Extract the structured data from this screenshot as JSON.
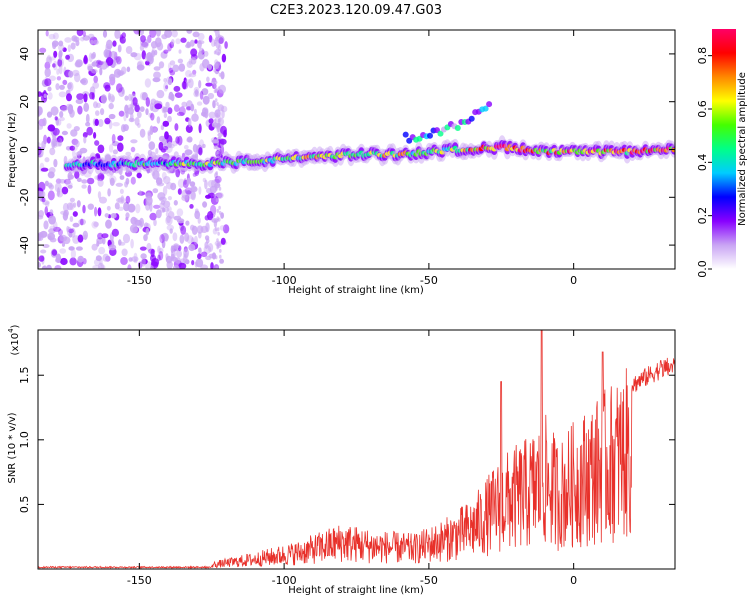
{
  "title": "C2E3.2023.120.09.47.G03",
  "chart_data": [
    {
      "type": "heatmap",
      "xlabel": "Height of straight line (km)",
      "ylabel": "Frequency (Hz)",
      "xlim": [
        -185,
        35
      ],
      "ylim": [
        -50,
        50
      ],
      "x_ticks": [
        -150,
        -100,
        -50,
        0
      ],
      "y_ticks": [
        -40,
        -20,
        0,
        20,
        40
      ],
      "colorbar": {
        "label": "Normalized spectral amplitude",
        "range": [
          0,
          0.9
        ],
        "ticks": [
          "0.0",
          "0.2",
          "0.4",
          "0.6",
          "0.8"
        ],
        "colors": [
          "#ffffff",
          "#c9a4f4",
          "#8800ff",
          "#0000ff",
          "#00ccff",
          "#00ff88",
          "#44ff00",
          "#ffff00",
          "#ff8800",
          "#ff0000",
          "#ff0066"
        ]
      },
      "ridge": [
        {
          "x": -170,
          "f": -6,
          "a": 0.45
        },
        {
          "x": -150,
          "f": -6,
          "a": 0.45
        },
        {
          "x": -130,
          "f": -6,
          "a": 0.6
        },
        {
          "x": -110,
          "f": -5,
          "a": 0.5
        },
        {
          "x": -90,
          "f": -3,
          "a": 0.7
        },
        {
          "x": -75,
          "f": -2,
          "a": 0.55
        },
        {
          "x": -60,
          "f": -2,
          "a": 0.7
        },
        {
          "x": -50,
          "f": -1,
          "a": 0.6
        },
        {
          "x": -40,
          "f": 0,
          "a": 0.65
        },
        {
          "x": -25,
          "f": 1,
          "a": 0.9
        },
        {
          "x": -10,
          "f": -1,
          "a": 0.8
        },
        {
          "x": 0,
          "f": -1,
          "a": 0.85
        },
        {
          "x": 15,
          "f": -1,
          "a": 0.8
        },
        {
          "x": 35,
          "f": 0,
          "a": 0.8
        }
      ],
      "secondary_ridge": [
        {
          "x": -55,
          "f": 5
        },
        {
          "x": -40,
          "f": 10
        },
        {
          "x": -30,
          "f": 18
        }
      ]
    },
    {
      "type": "line",
      "xlabel": "Height of straight line (km)",
      "ylabel": "SNR (10 * v/v)",
      "y_multiplier": "(x10",
      "y_multiplier_exp": "4",
      "y_multiplier_close": ")",
      "xlim": [
        -185,
        35
      ],
      "ylim": [
        0,
        18500
      ],
      "x_ticks": [
        -150,
        -100,
        -50,
        0
      ],
      "y_ticks": [
        "0.5",
        "1.0",
        "1.5"
      ],
      "y_tick_values": [
        5000,
        10000,
        15000
      ],
      "color": "#e8302a",
      "envelope": [
        {
          "x": -185,
          "y": 100
        },
        {
          "x": -140,
          "y": 200
        },
        {
          "x": -125,
          "y": 500
        },
        {
          "x": -110,
          "y": 1200
        },
        {
          "x": -95,
          "y": 2000
        },
        {
          "x": -80,
          "y": 3300
        },
        {
          "x": -70,
          "y": 2800
        },
        {
          "x": -55,
          "y": 2500
        },
        {
          "x": -45,
          "y": 3500
        },
        {
          "x": -35,
          "y": 5000
        },
        {
          "x": -25,
          "y": 8000
        },
        {
          "x": -15,
          "y": 9500
        },
        {
          "x": -10,
          "y": 11000
        },
        {
          "x": -5,
          "y": 9000
        },
        {
          "x": 0,
          "y": 10500
        },
        {
          "x": 10,
          "y": 12500
        },
        {
          "x": 20,
          "y": 14500
        },
        {
          "x": 30,
          "y": 15800
        },
        {
          "x": 35,
          "y": 16000
        }
      ],
      "spikes": [
        {
          "x": -11,
          "y": 18500
        },
        {
          "x": -25,
          "y": 14500
        },
        {
          "x": 10,
          "y": 16800
        }
      ]
    }
  ]
}
